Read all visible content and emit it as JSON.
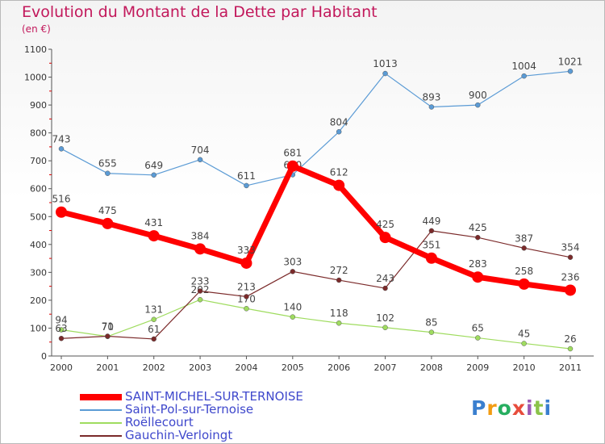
{
  "header": {
    "title": "Evolution du Montant de la Dette par Habitant",
    "subtitle": "(en €)"
  },
  "logo": {
    "text": "Proxiti",
    "colors": [
      "#3a7fcf",
      "#f39c12",
      "#27ae60",
      "#e74c3c",
      "#9b59b6",
      "#8bc34a",
      "#3a7fcf"
    ]
  },
  "chart_data": {
    "type": "line",
    "title": "Evolution du Montant de la Dette par Habitant",
    "subtitle": "(en €)",
    "xlabel": "",
    "ylabel": "",
    "x": [
      "2000",
      "2001",
      "2002",
      "2003",
      "2004",
      "2005",
      "2006",
      "2007",
      "2008",
      "2009",
      "2010",
      "2011"
    ],
    "ylim": [
      0,
      1100
    ],
    "yticks": [
      0,
      100,
      200,
      300,
      400,
      500,
      600,
      700,
      800,
      900,
      1000,
      1100
    ],
    "grid": false,
    "legend_position": "bottom-left",
    "series": [
      {
        "name": "SAINT-MICHEL-SUR-TERNOISE",
        "color": "#ff0000",
        "emphasis": "thick",
        "values": [
          516,
          475,
          431,
          384,
          333,
          681,
          612,
          425,
          351,
          283,
          258,
          236
        ],
        "labels": [
          "516",
          "475",
          "431",
          "384",
          "333",
          "681",
          "612",
          "425",
          "351",
          "283",
          "258",
          "236"
        ]
      },
      {
        "name": "Saint-Pol-sur-Ternoise",
        "color": "#5b9bd5",
        "emphasis": "thin",
        "values": [
          743,
          655,
          649,
          704,
          611,
          650,
          804,
          1013,
          893,
          900,
          1004,
          1021
        ],
        "labels": [
          "743",
          "655",
          "649",
          "704",
          "611",
          "650",
          "804",
          "1013",
          "893",
          "900",
          "1004",
          "1021"
        ]
      },
      {
        "name": "Roëllecourt",
        "color": "#9fdc5f",
        "emphasis": "thin",
        "values": [
          94,
          70,
          131,
          202,
          170,
          140,
          118,
          102,
          85,
          65,
          45,
          26
        ],
        "labels": [
          "94",
          "70",
          "131",
          "202",
          "170",
          "140",
          "118",
          "102",
          "85",
          "65",
          "45",
          "26"
        ]
      },
      {
        "name": "Gauchin-Verloingt",
        "color": "#7b2a2a",
        "emphasis": "thin",
        "values": [
          63,
          71,
          61,
          233,
          213,
          303,
          272,
          243,
          449,
          425,
          387,
          354
        ],
        "labels": [
          "63",
          "71",
          "61",
          "233",
          "213",
          "303",
          "272",
          "243",
          "449",
          "425",
          "387",
          "354"
        ]
      }
    ]
  }
}
